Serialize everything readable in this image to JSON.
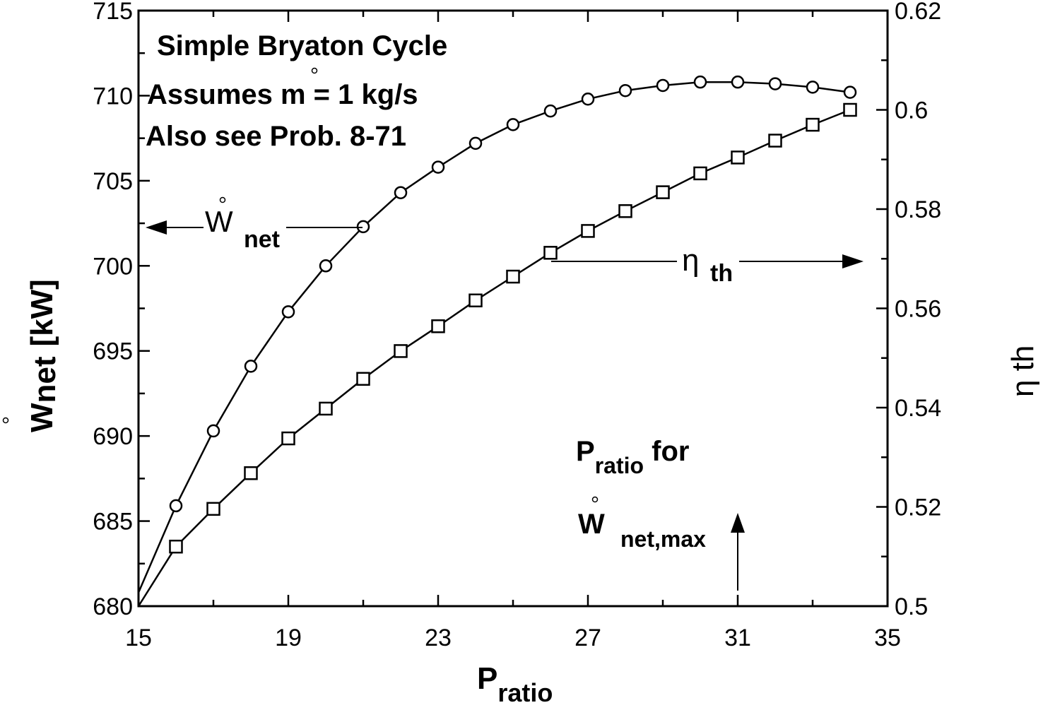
{
  "chart_data": {
    "type": "line",
    "title": "Simple Bryaton Cycle",
    "annotations": {
      "line1": "Simple Bryaton Cycle",
      "line2_prefix": "Assumes ",
      "line2_symbol": "m",
      "line2_suffix": " = 1 kg/s",
      "line3": "Also see Prob. 8-71",
      "wnet_label_main": "W",
      "wnet_label_sub": "net",
      "eta_label_main": "η",
      "eta_label_sub": "th",
      "pratio_note_main": "P",
      "pratio_note_sub": "ratio",
      "pratio_note_suffix": " for",
      "wmax_main": "W",
      "wmax_sub": "net,max"
    },
    "xlabel": "P",
    "xlabel_sub": "ratio",
    "ylabel": "W",
    "ylabel_sub": "net",
    "ylabel_units": "[kW]",
    "y2label": "η th",
    "xlim": [
      15,
      35
    ],
    "ylim": [
      680,
      715
    ],
    "y2lim": [
      0.5,
      0.62
    ],
    "x_ticks": [
      "15",
      "19",
      "23",
      "27",
      "31",
      "35"
    ],
    "y_ticks": [
      "680",
      "685",
      "690",
      "695",
      "700",
      "705",
      "710",
      "715"
    ],
    "y2_ticks": [
      "0.5",
      "0.52",
      "0.54",
      "0.56",
      "0.58",
      "0.6",
      "0.62"
    ],
    "x": [
      15,
      16,
      17,
      18,
      19,
      20,
      21,
      22,
      23,
      24,
      25,
      26,
      27,
      28,
      29,
      30,
      31,
      32,
      33,
      34
    ],
    "series": [
      {
        "name": "Wnet",
        "axis": "left",
        "marker": "circle",
        "values": [
          680.8,
          685.9,
          690.3,
          694.1,
          697.3,
          700.0,
          702.3,
          704.3,
          705.8,
          707.2,
          708.3,
          709.1,
          709.8,
          710.3,
          710.6,
          710.8,
          710.8,
          710.7,
          710.5,
          710.2
        ]
      },
      {
        "name": "eta_th",
        "axis": "right",
        "marker": "square",
        "values": [
          0.5,
          0.512,
          0.5196,
          0.5268,
          0.5338,
          0.5398,
          0.5458,
          0.5514,
          0.5564,
          0.5616,
          0.5664,
          0.5712,
          0.5756,
          0.5796,
          0.5834,
          0.5872,
          0.5904,
          0.5938,
          0.597,
          0.6
        ]
      }
    ]
  }
}
